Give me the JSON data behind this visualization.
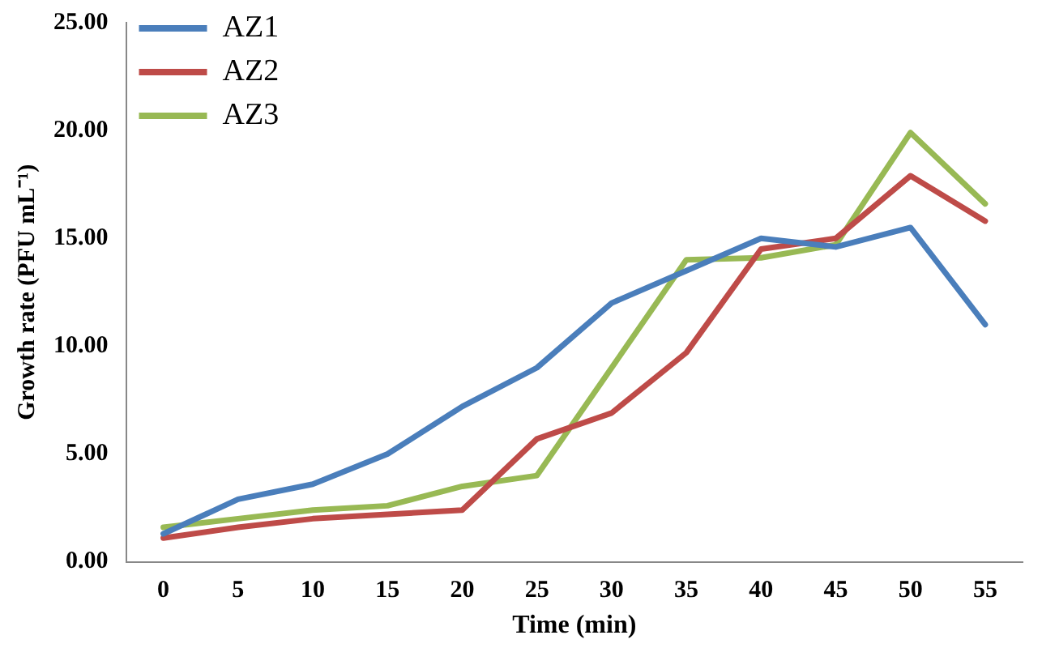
{
  "chart_data": {
    "type": "line",
    "xlabel": "Time (min)",
    "ylabel": "Growth rate (PFU mL⁻¹)",
    "categories": [
      "0",
      "5",
      "10",
      "15",
      "20",
      "25",
      "30",
      "35",
      "40",
      "45",
      "50",
      "55"
    ],
    "series": [
      {
        "name": "AZ1",
        "color": "#4a7ebb",
        "values": [
          1.3,
          2.9,
          3.6,
          5.0,
          7.2,
          9.0,
          12.0,
          13.5,
          15.0,
          14.6,
          15.5,
          11.0
        ]
      },
      {
        "name": "AZ2",
        "color": "#be4b48",
        "values": [
          1.1,
          1.6,
          2.0,
          2.2,
          2.4,
          5.7,
          6.9,
          9.7,
          14.5,
          15.0,
          17.9,
          15.8
        ]
      },
      {
        "name": "AZ3",
        "color": "#98b954",
        "values": [
          1.6,
          2.0,
          2.4,
          2.6,
          3.5,
          4.0,
          9.0,
          14.0,
          14.1,
          14.7,
          19.9,
          16.6
        ]
      }
    ],
    "ylim": [
      0,
      25
    ],
    "yticks": [
      {
        "value": 0,
        "label": "0.00"
      },
      {
        "value": 5,
        "label": "5.00"
      },
      {
        "value": 10,
        "label": "10.00"
      },
      {
        "value": 15,
        "label": "15.00"
      },
      {
        "value": 20,
        "label": "20.00"
      },
      {
        "value": 25,
        "label": "25.00"
      }
    ],
    "grid": false,
    "legend": "top left",
    "marker": "none",
    "line_style": "solid"
  }
}
